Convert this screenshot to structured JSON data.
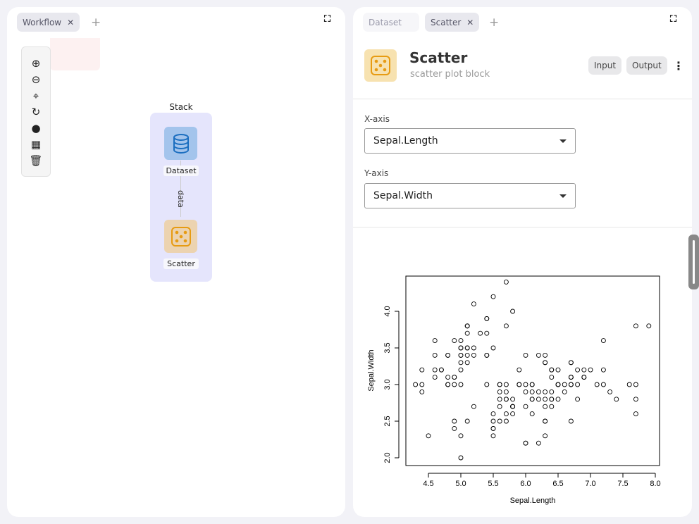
{
  "left_panel": {
    "tabs": [
      {
        "label": "Workflow",
        "active": true
      }
    ],
    "toolbar_icons": [
      "zoom-in-icon",
      "zoom-out-icon",
      "center-icon",
      "refresh-icon",
      "add-circle-icon",
      "layout-icon",
      "trash-icon"
    ],
    "stack": {
      "label": "Stack",
      "nodes": [
        {
          "label": "Dataset",
          "icon": "database-icon",
          "color": "#a3c4ec"
        },
        {
          "label": "Scatter",
          "icon": "dice-icon",
          "color": "#ecd3b0"
        }
      ],
      "edge_label": "data"
    }
  },
  "right_panel": {
    "tabs": [
      {
        "label": "Dataset",
        "active": false
      },
      {
        "label": "Scatter",
        "active": true
      }
    ],
    "block": {
      "title": "Scatter",
      "subtitle": "scatter plot block",
      "input_label": "Input",
      "output_label": "Output"
    },
    "fields": {
      "x_label": "X-axis",
      "x_value": "Sepal.Length",
      "y_label": "Y-axis",
      "y_value": "Sepal.Width"
    }
  },
  "chart_data": {
    "type": "scatter",
    "xlabel": "Sepal.Length",
    "ylabel": "Sepal.Width",
    "xticks": [
      4.5,
      5.0,
      5.5,
      6.0,
      6.5,
      7.0,
      7.5,
      8.0
    ],
    "yticks": [
      2.0,
      2.5,
      3.0,
      3.5,
      4.0
    ],
    "xlim": [
      4.3,
      7.9
    ],
    "ylim": [
      2.0,
      4.4
    ],
    "marker": "open-circle",
    "points": [
      [
        5.1,
        3.5
      ],
      [
        4.9,
        3.0
      ],
      [
        4.7,
        3.2
      ],
      [
        4.6,
        3.1
      ],
      [
        5.0,
        3.6
      ],
      [
        5.4,
        3.9
      ],
      [
        4.6,
        3.4
      ],
      [
        5.0,
        3.4
      ],
      [
        4.4,
        2.9
      ],
      [
        4.9,
        3.1
      ],
      [
        5.4,
        3.7
      ],
      [
        4.8,
        3.4
      ],
      [
        4.8,
        3.0
      ],
      [
        4.3,
        3.0
      ],
      [
        5.8,
        4.0
      ],
      [
        5.7,
        4.4
      ],
      [
        5.4,
        3.9
      ],
      [
        5.1,
        3.5
      ],
      [
        5.7,
        3.8
      ],
      [
        5.1,
        3.8
      ],
      [
        5.4,
        3.4
      ],
      [
        5.1,
        3.7
      ],
      [
        4.6,
        3.6
      ],
      [
        5.1,
        3.3
      ],
      [
        4.8,
        3.4
      ],
      [
        5.0,
        3.0
      ],
      [
        5.0,
        3.4
      ],
      [
        5.2,
        3.5
      ],
      [
        5.2,
        3.4
      ],
      [
        4.7,
        3.2
      ],
      [
        4.8,
        3.1
      ],
      [
        5.4,
        3.4
      ],
      [
        5.2,
        4.1
      ],
      [
        5.5,
        4.2
      ],
      [
        4.9,
        3.1
      ],
      [
        5.0,
        3.2
      ],
      [
        5.5,
        3.5
      ],
      [
        4.9,
        3.6
      ],
      [
        4.4,
        3.0
      ],
      [
        5.1,
        3.4
      ],
      [
        5.0,
        3.5
      ],
      [
        4.5,
        2.3
      ],
      [
        4.4,
        3.2
      ],
      [
        5.0,
        3.5
      ],
      [
        5.1,
        3.8
      ],
      [
        4.8,
        3.0
      ],
      [
        5.1,
        3.8
      ],
      [
        4.6,
        3.2
      ],
      [
        5.3,
        3.7
      ],
      [
        5.0,
        3.3
      ],
      [
        7.0,
        3.2
      ],
      [
        6.4,
        3.2
      ],
      [
        6.9,
        3.1
      ],
      [
        5.5,
        2.3
      ],
      [
        6.5,
        2.8
      ],
      [
        5.7,
        2.8
      ],
      [
        6.3,
        3.3
      ],
      [
        4.9,
        2.4
      ],
      [
        6.6,
        2.9
      ],
      [
        5.2,
        2.7
      ],
      [
        5.0,
        2.0
      ],
      [
        5.9,
        3.0
      ],
      [
        6.0,
        2.2
      ],
      [
        6.1,
        2.9
      ],
      [
        5.6,
        2.9
      ],
      [
        6.7,
        3.1
      ],
      [
        5.6,
        3.0
      ],
      [
        5.8,
        2.7
      ],
      [
        6.2,
        2.2
      ],
      [
        5.6,
        2.5
      ],
      [
        5.9,
        3.2
      ],
      [
        6.1,
        2.8
      ],
      [
        6.3,
        2.5
      ],
      [
        6.1,
        2.8
      ],
      [
        6.4,
        2.9
      ],
      [
        6.6,
        3.0
      ],
      [
        6.8,
        2.8
      ],
      [
        6.7,
        3.0
      ],
      [
        6.0,
        2.9
      ],
      [
        5.7,
        2.6
      ],
      [
        5.5,
        2.4
      ],
      [
        5.5,
        2.4
      ],
      [
        5.8,
        2.7
      ],
      [
        6.0,
        2.7
      ],
      [
        5.4,
        3.0
      ],
      [
        6.0,
        3.4
      ],
      [
        6.7,
        3.1
      ],
      [
        6.3,
        2.3
      ],
      [
        5.6,
        3.0
      ],
      [
        5.5,
        2.5
      ],
      [
        5.5,
        2.6
      ],
      [
        6.1,
        3.0
      ],
      [
        5.8,
        2.6
      ],
      [
        5.0,
        2.3
      ],
      [
        5.6,
        2.7
      ],
      [
        5.7,
        3.0
      ],
      [
        5.7,
        2.9
      ],
      [
        6.2,
        2.9
      ],
      [
        5.1,
        2.5
      ],
      [
        5.7,
        2.8
      ],
      [
        6.3,
        3.3
      ],
      [
        5.8,
        2.7
      ],
      [
        7.1,
        3.0
      ],
      [
        6.3,
        2.9
      ],
      [
        6.5,
        3.0
      ],
      [
        7.6,
        3.0
      ],
      [
        4.9,
        2.5
      ],
      [
        7.3,
        2.9
      ],
      [
        6.7,
        2.5
      ],
      [
        7.2,
        3.6
      ],
      [
        6.5,
        3.2
      ],
      [
        6.4,
        2.7
      ],
      [
        6.8,
        3.0
      ],
      [
        5.7,
        2.5
      ],
      [
        5.8,
        2.8
      ],
      [
        6.4,
        3.2
      ],
      [
        6.5,
        3.0
      ],
      [
        7.7,
        3.8
      ],
      [
        7.7,
        2.6
      ],
      [
        6.0,
        2.2
      ],
      [
        6.9,
        3.2
      ],
      [
        5.6,
        2.8
      ],
      [
        7.7,
        2.8
      ],
      [
        6.3,
        2.7
      ],
      [
        6.7,
        3.3
      ],
      [
        7.2,
        3.2
      ],
      [
        6.2,
        2.8
      ],
      [
        6.1,
        3.0
      ],
      [
        6.4,
        2.8
      ],
      [
        7.2,
        3.0
      ],
      [
        7.4,
        2.8
      ],
      [
        7.9,
        3.8
      ],
      [
        6.4,
        2.8
      ],
      [
        6.3,
        2.8
      ],
      [
        6.1,
        2.6
      ],
      [
        7.7,
        3.0
      ],
      [
        6.3,
        3.4
      ],
      [
        6.4,
        3.1
      ],
      [
        6.0,
        3.0
      ],
      [
        6.9,
        3.1
      ],
      [
        6.7,
        3.1
      ],
      [
        6.9,
        3.1
      ],
      [
        5.8,
        2.7
      ],
      [
        6.8,
        3.2
      ],
      [
        6.7,
        3.3
      ],
      [
        6.7,
        3.0
      ],
      [
        6.3,
        2.5
      ],
      [
        6.5,
        3.0
      ],
      [
        6.2,
        3.4
      ],
      [
        5.9,
        3.0
      ]
    ]
  }
}
